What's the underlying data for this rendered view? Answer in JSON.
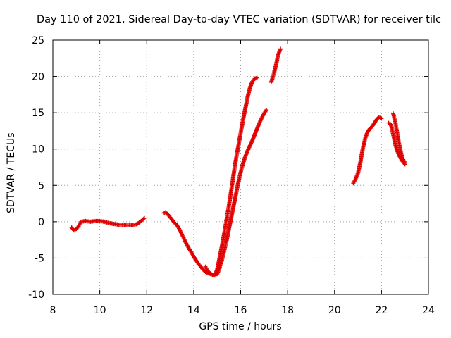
{
  "chart_data": {
    "type": "scatter",
    "title": "Day 110 of 2021, Sidereal Day-to-day VTEC variation (SDTVAR) for receiver tilc",
    "xlabel": "GPS time / hours",
    "ylabel": "SDTVAR / TECUs",
    "xlim": [
      8,
      24
    ],
    "ylim": [
      -10,
      25
    ],
    "xticks": [
      "8",
      "10",
      "12",
      "14",
      "16",
      "18",
      "20",
      "22",
      "24"
    ],
    "yticks": [
      "-10",
      "-5",
      "0",
      "5",
      "10",
      "15",
      "20",
      "25"
    ],
    "grid": true,
    "marker": "+",
    "color": "#e00000",
    "series": [
      {
        "points": [
          [
            8.8,
            -0.8
          ],
          [
            8.9,
            -1.2
          ],
          [
            9.0,
            -1.0
          ],
          [
            9.1,
            -0.6
          ],
          [
            9.2,
            0.0
          ],
          [
            9.4,
            0.1
          ],
          [
            9.6,
            0.0
          ],
          [
            9.8,
            0.1
          ],
          [
            10.0,
            0.1
          ],
          [
            10.2,
            0.0
          ],
          [
            10.4,
            -0.2
          ],
          [
            10.6,
            -0.3
          ],
          [
            10.8,
            -0.4
          ],
          [
            11.0,
            -0.4
          ],
          [
            11.2,
            -0.5
          ],
          [
            11.4,
            -0.5
          ],
          [
            11.6,
            -0.3
          ],
          [
            11.8,
            0.2
          ],
          [
            11.9,
            0.5
          ]
        ]
      },
      {
        "points": [
          [
            12.7,
            1.2
          ],
          [
            12.8,
            1.3
          ],
          [
            12.9,
            1.0
          ],
          [
            13.0,
            0.6
          ],
          [
            13.1,
            0.2
          ],
          [
            13.2,
            -0.2
          ],
          [
            13.3,
            -0.5
          ],
          [
            13.4,
            -1.1
          ],
          [
            13.5,
            -1.8
          ],
          [
            13.6,
            -2.4
          ],
          [
            13.7,
            -3.1
          ],
          [
            13.8,
            -3.7
          ],
          [
            13.9,
            -4.2
          ],
          [
            14.0,
            -4.8
          ],
          [
            14.1,
            -5.3
          ],
          [
            14.2,
            -5.8
          ],
          [
            14.3,
            -6.2
          ],
          [
            14.4,
            -6.6
          ],
          [
            14.5,
            -6.9
          ],
          [
            14.6,
            -7.1
          ],
          [
            14.7,
            -7.2
          ],
          [
            14.8,
            -7.3
          ],
          [
            14.9,
            -7.3
          ],
          [
            15.0,
            -6.6
          ],
          [
            15.1,
            -5.0
          ],
          [
            15.2,
            -3.4
          ],
          [
            15.3,
            -1.6
          ],
          [
            15.4,
            0.3
          ],
          [
            15.5,
            2.2
          ],
          [
            15.6,
            4.3
          ],
          [
            15.7,
            6.5
          ],
          [
            15.8,
            8.6
          ],
          [
            15.9,
            10.4
          ],
          [
            16.0,
            12.2
          ],
          [
            16.1,
            14.0
          ],
          [
            16.2,
            15.6
          ],
          [
            16.3,
            17.2
          ],
          [
            16.4,
            18.5
          ],
          [
            16.5,
            19.3
          ],
          [
            16.6,
            19.7
          ],
          [
            16.7,
            19.8
          ]
        ]
      },
      {
        "points": [
          [
            14.5,
            -6.2
          ],
          [
            14.6,
            -6.8
          ],
          [
            14.7,
            -7.1
          ],
          [
            14.8,
            -7.3
          ],
          [
            14.9,
            -7.4
          ],
          [
            15.0,
            -7.2
          ],
          [
            15.1,
            -6.4
          ],
          [
            15.2,
            -5.3
          ],
          [
            15.3,
            -4.0
          ],
          [
            15.4,
            -2.6
          ],
          [
            15.5,
            -1.0
          ],
          [
            15.6,
            0.6
          ],
          [
            15.7,
            2.2
          ],
          [
            15.8,
            3.8
          ],
          [
            15.9,
            5.4
          ],
          [
            16.0,
            6.8
          ],
          [
            16.1,
            8.0
          ],
          [
            16.2,
            9.0
          ],
          [
            16.3,
            9.8
          ],
          [
            16.4,
            10.5
          ],
          [
            16.5,
            11.2
          ],
          [
            16.6,
            12.0
          ],
          [
            16.7,
            12.8
          ],
          [
            16.8,
            13.6
          ],
          [
            16.9,
            14.3
          ],
          [
            17.0,
            14.9
          ],
          [
            17.1,
            15.4
          ]
        ]
      },
      {
        "points": [
          [
            17.3,
            19.2
          ],
          [
            17.4,
            20.2
          ],
          [
            17.5,
            21.5
          ],
          [
            17.6,
            23.0
          ],
          [
            17.7,
            23.8
          ]
        ]
      },
      {
        "points": [
          [
            20.8,
            5.3
          ],
          [
            20.9,
            5.9
          ],
          [
            21.0,
            6.7
          ],
          [
            21.1,
            8.2
          ],
          [
            21.2,
            10.0
          ],
          [
            21.3,
            11.4
          ],
          [
            21.4,
            12.3
          ],
          [
            21.5,
            12.8
          ],
          [
            21.6,
            13.1
          ],
          [
            21.7,
            13.6
          ],
          [
            21.8,
            14.1
          ],
          [
            21.9,
            14.4
          ],
          [
            22.0,
            14.2
          ]
        ]
      },
      {
        "points": [
          [
            22.3,
            13.6
          ],
          [
            22.4,
            13.4
          ],
          [
            22.5,
            12.0
          ],
          [
            22.6,
            10.5
          ],
          [
            22.7,
            9.5
          ],
          [
            22.8,
            8.8
          ],
          [
            22.9,
            8.3
          ],
          [
            23.0,
            7.9
          ]
        ]
      },
      {
        "points": [
          [
            22.5,
            14.9
          ],
          [
            22.6,
            13.5
          ],
          [
            22.7,
            11.6
          ],
          [
            22.8,
            9.9
          ],
          [
            22.9,
            8.7
          ],
          [
            23.0,
            8.1
          ]
        ]
      }
    ]
  }
}
